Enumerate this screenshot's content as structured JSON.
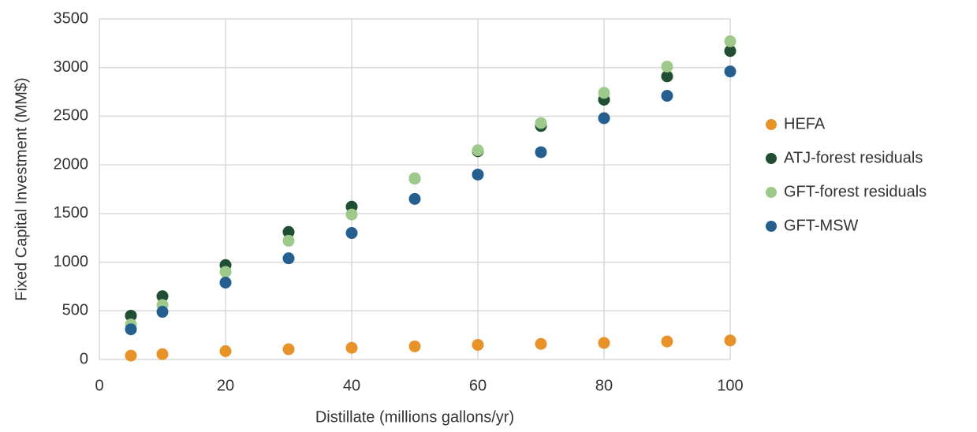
{
  "chart_data": {
    "type": "scatter",
    "x_label": "Distillate (millions gallons/yr)",
    "y_label": "Fixed Capital Investment (MM$)",
    "x": [
      5,
      10,
      20,
      30,
      40,
      50,
      60,
      70,
      80,
      90,
      100
    ],
    "series": [
      {
        "name": "HEFA",
        "color": "#e8922a",
        "values": [
          40,
          55,
          85,
          105,
          120,
          135,
          150,
          160,
          170,
          185,
          195
        ]
      },
      {
        "name": "ATJ-forest residuals",
        "color": "#1f4e33",
        "values": [
          450,
          650,
          970,
          1310,
          1570,
          1860,
          2140,
          2400,
          2670,
          2910,
          3170
        ]
      },
      {
        "name": "GFT-forest residuals",
        "color": "#9dc98a",
        "values": [
          360,
          560,
          900,
          1220,
          1490,
          1860,
          2150,
          2430,
          2740,
          3010,
          3270
        ]
      },
      {
        "name": "GFT-MSW",
        "color": "#245f8f",
        "values": [
          310,
          490,
          790,
          1040,
          1300,
          1650,
          1900,
          2130,
          2480,
          2710,
          2960
        ]
      }
    ],
    "xlim": [
      0,
      100
    ],
    "xticks": [
      0,
      20,
      40,
      60,
      80,
      100
    ],
    "ylim": [
      0,
      3500
    ],
    "yticks": [
      0,
      500,
      1000,
      1500,
      2000,
      2500,
      3000,
      3500
    ],
    "grid": true,
    "legend": "right"
  }
}
